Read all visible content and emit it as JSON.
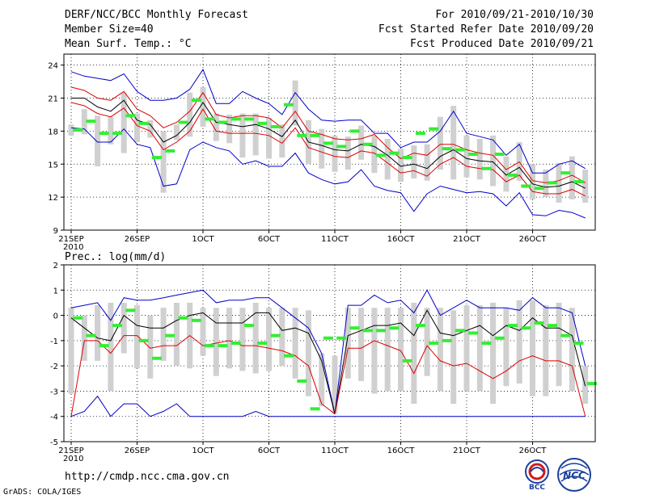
{
  "header": {
    "title": "DERF/NCC/BCC Monthly Forecast",
    "member_size": "Member Size=40",
    "variable": "Mean Surf. Temp.: °C",
    "period": "For 2010/09/21-2010/10/30",
    "started": "Fcst Started Refer Date 2010/09/20",
    "produced": "Fcst Produced Date 2010/09/21"
  },
  "footer": {
    "url": "http://cmdp.ncc.cma.gov.cn",
    "grads": "GrADS: COLA/IGES",
    "logo_bcc": "BCC",
    "logo_ncc": "NCC"
  },
  "colors": {
    "max_min": "#0000cc",
    "spread": "#dd0000",
    "mean": "#000000",
    "member_box": "#d0d0d0",
    "observation": "#33ee33"
  },
  "chart_data": [
    {
      "type": "line",
      "name": "temperature",
      "title": "Mean Surf. Temp.: °C",
      "ylim": [
        9,
        25
      ],
      "yticks": [
        9,
        12,
        15,
        18,
        21,
        24
      ],
      "grid": true,
      "x_tick_days": [
        0,
        5,
        10,
        15,
        20,
        25,
        30,
        35
      ],
      "x_tick_labels": [
        "21SEP",
        "26SEP",
        "1OCT",
        "6OCT",
        "11OCT",
        "16OCT",
        "21OCT",
        "26OCT"
      ],
      "x_year_label": "2010",
      "series": [
        {
          "name": "max",
          "values": [
            23.4,
            23.0,
            22.8,
            22.6,
            23.2,
            21.6,
            20.8,
            20.8,
            21.0,
            21.8,
            23.6,
            20.5,
            20.5,
            21.6,
            21.0,
            20.5,
            19.5,
            21.5,
            20.0,
            19.0,
            18.9,
            19.0,
            19.0,
            17.8,
            17.8,
            16.5,
            17.0,
            17.0,
            18.0,
            19.8,
            17.8,
            17.5,
            17.2,
            15.8,
            16.8,
            14.2,
            14.2,
            15.0,
            15.3,
            14.6
          ]
        },
        {
          "name": "spread_high",
          "values": [
            22.0,
            21.7,
            21.0,
            20.8,
            21.6,
            20.0,
            19.4,
            18.3,
            18.8,
            19.8,
            21.5,
            19.5,
            19.2,
            19.4,
            19.4,
            19.2,
            18.3,
            19.8,
            18.0,
            17.7,
            17.3,
            17.2,
            17.3,
            17.7,
            16.5,
            15.5,
            16.0,
            15.8,
            16.8,
            16.8,
            16.3,
            16.0,
            15.8,
            14.5,
            15.2,
            13.5,
            13.3,
            13.5,
            14.0,
            13.3
          ]
        },
        {
          "name": "mean",
          "values": [
            21.0,
            21.0,
            20.2,
            19.8,
            20.8,
            19.0,
            18.6,
            17.0,
            17.6,
            18.8,
            20.6,
            18.8,
            18.6,
            18.4,
            18.6,
            18.2,
            17.5,
            19.0,
            17.0,
            16.7,
            16.3,
            16.2,
            16.8,
            16.6,
            15.8,
            14.8,
            15.0,
            14.6,
            15.7,
            16.3,
            15.5,
            15.3,
            15.2,
            14.0,
            14.7,
            13.2,
            12.9,
            13.0,
            13.4,
            12.8
          ]
        },
        {
          "name": "spread_low",
          "values": [
            20.6,
            20.3,
            19.6,
            19.3,
            20.1,
            18.5,
            18.0,
            16.3,
            17.0,
            18.0,
            20.0,
            18.0,
            17.8,
            17.8,
            17.8,
            17.6,
            16.9,
            18.3,
            16.5,
            16.1,
            15.7,
            15.6,
            16.2,
            16.0,
            15.1,
            14.2,
            14.4,
            13.9,
            15.0,
            15.6,
            14.8,
            14.6,
            14.5,
            13.4,
            14.0,
            12.5,
            12.3,
            12.3,
            12.7,
            12.1
          ]
        },
        {
          "name": "min",
          "values": [
            18.3,
            18.2,
            17.0,
            17.0,
            18.2,
            16.8,
            16.5,
            13.0,
            13.2,
            16.3,
            17.0,
            16.5,
            16.2,
            15.0,
            15.3,
            14.8,
            14.8,
            16.0,
            14.2,
            13.6,
            13.2,
            13.4,
            14.5,
            13.0,
            12.6,
            12.4,
            10.7,
            12.3,
            13.0,
            12.7,
            12.4,
            12.5,
            12.3,
            11.2,
            12.4,
            10.4,
            10.3,
            10.8,
            10.6,
            10.1
          ]
        },
        {
          "name": "observation",
          "values": [
            18.1,
            18.9,
            17.8,
            17.8,
            19.4,
            18.7,
            15.6,
            16.2,
            18.8,
            20.8,
            19.1,
            18.8,
            19.1,
            19.1,
            18.7,
            18.4,
            20.4,
            17.6,
            17.6,
            16.9,
            16.6,
            18.0,
            16.8,
            15.8,
            16.0,
            15.6,
            17.8,
            18.2,
            16.4,
            16.3,
            15.9,
            14.6,
            15.9,
            14.0,
            13.0,
            12.8,
            13.3,
            14.2,
            13.4
          ]
        },
        {
          "name": "box_top",
          "values": [
            18.6,
            20.0,
            19.4,
            19.3,
            21.5,
            19.6,
            19.0,
            18.0,
            18.6,
            21.5,
            22.0,
            19.6,
            19.5,
            19.6,
            19.6,
            19.2,
            18.6,
            22.6,
            19.0,
            18.2,
            17.6,
            17.5,
            18.5,
            17.6,
            17.3,
            16.4,
            16.7,
            16.8,
            19.3,
            20.3,
            17.6,
            17.3,
            17.6,
            15.7,
            17.0,
            15.0,
            14.5,
            15.1,
            15.7,
            14.5
          ]
        },
        {
          "name": "box_bottom",
          "values": [
            17.6,
            17.7,
            14.8,
            16.8,
            16.0,
            17.0,
            17.4,
            12.4,
            17.2,
            17.5,
            18.4,
            17.1,
            16.9,
            15.6,
            15.8,
            15.5,
            15.6,
            18.5,
            15.0,
            14.6,
            14.3,
            14.5,
            15.4,
            14.2,
            13.6,
            13.4,
            13.7,
            13.5,
            14.5,
            13.6,
            13.8,
            13.6,
            13.0,
            12.5,
            13.5,
            11.8,
            12.0,
            11.5,
            11.8,
            11.5
          ]
        }
      ]
    },
    {
      "type": "line",
      "name": "precipitation",
      "title": "Prec.: log(mm/d)",
      "ylim": [
        -5,
        2
      ],
      "yticks": [
        -5,
        -4,
        -3,
        -2,
        -1,
        0,
        1,
        2
      ],
      "grid": true,
      "x_tick_days": [
        0,
        5,
        10,
        15,
        20,
        25,
        30,
        35
      ],
      "x_tick_labels": [
        "21SEP",
        "26SEP",
        "1OCT",
        "6OCT",
        "11OCT",
        "16OCT",
        "21OCT",
        "26OCT"
      ],
      "x_year_label": "2010",
      "series": [
        {
          "name": "max",
          "values": [
            0.3,
            0.4,
            0.5,
            -0.2,
            0.7,
            0.6,
            0.6,
            0.7,
            0.8,
            0.9,
            1.0,
            0.5,
            0.6,
            0.6,
            0.7,
            0.7,
            0.3,
            -0.1,
            -0.5,
            -1.5,
            -3.9,
            0.4,
            0.4,
            0.8,
            0.5,
            0.6,
            0.1,
            1.0,
            0.0,
            0.3,
            0.6,
            0.3,
            0.3,
            0.3,
            0.2,
            0.7,
            0.3,
            0.3,
            0.1,
            -2.0
          ]
        },
        {
          "name": "mean",
          "values": [
            -0.1,
            -0.5,
            -0.9,
            -1.0,
            0.0,
            -0.4,
            -0.5,
            -0.5,
            -0.2,
            0.0,
            0.1,
            -0.3,
            -0.3,
            -0.3,
            0.1,
            0.1,
            -0.6,
            -0.5,
            -0.7,
            -1.8,
            -3.9,
            -0.8,
            -0.6,
            -0.4,
            -0.4,
            -0.3,
            -0.8,
            0.2,
            -0.7,
            -0.8,
            -0.6,
            -0.4,
            -0.8,
            -0.4,
            -0.6,
            -0.1,
            -0.5,
            -0.5,
            -0.8,
            -2.8
          ]
        },
        {
          "name": "spread_low",
          "values": [
            -4.0,
            -1.0,
            -1.0,
            -1.5,
            -0.8,
            -0.8,
            -1.3,
            -1.2,
            -1.2,
            -0.8,
            -1.2,
            -1.1,
            -1.0,
            -1.2,
            -1.2,
            -1.3,
            -1.4,
            -1.6,
            -2.0,
            -3.5,
            -3.9,
            -1.3,
            -1.3,
            -1.0,
            -1.2,
            -1.4,
            -2.3,
            -1.2,
            -1.8,
            -2.0,
            -1.9,
            -2.2,
            -2.5,
            -2.2,
            -1.8,
            -1.6,
            -1.8,
            -1.8,
            -2.0,
            -4.0
          ]
        },
        {
          "name": "min",
          "values": [
            -4.0,
            -3.8,
            -3.2,
            -4.0,
            -3.5,
            -3.5,
            -4.0,
            -3.8,
            -3.5,
            -4.0,
            -4.0,
            -4.0,
            -4.0,
            -4.0,
            -3.8,
            -4.0,
            -4.0,
            -4.0,
            -4.0,
            -4.0,
            -4.0,
            -4.0,
            -4.0,
            -4.0,
            -4.0,
            -4.0,
            -4.0,
            -4.0,
            -4.0,
            -4.0,
            -4.0,
            -4.0,
            -4.0,
            -4.0,
            -4.0,
            -4.0,
            -4.0,
            -4.0,
            -4.0,
            -4.0
          ]
        },
        {
          "name": "observation",
          "values": [
            -0.1,
            -0.8,
            -1.2,
            -0.4,
            0.2,
            -1.0,
            -1.7,
            -0.8,
            -0.1,
            -0.2,
            -1.2,
            -1.2,
            -1.1,
            -0.4,
            -1.1,
            -0.8,
            -1.6,
            -2.6,
            -3.7,
            -0.9,
            -0.9,
            -0.5,
            -0.6,
            -0.6,
            -0.5,
            -1.8,
            -0.4,
            -1.1,
            -1.0,
            -0.6,
            -0.7,
            -1.1,
            -0.9,
            -0.4,
            -0.5,
            -0.3,
            -0.4,
            -0.8,
            -1.1,
            -2.7
          ]
        },
        {
          "name": "box_top",
          "values": [
            0.3,
            0.0,
            0.4,
            0.5,
            0.5,
            0.4,
            0.0,
            0.3,
            0.5,
            0.5,
            0.3,
            0.3,
            0.3,
            0.3,
            0.5,
            0.3,
            0.3,
            0.3,
            0.2,
            -1.5,
            -1.6,
            0.3,
            0.3,
            0.3,
            0.3,
            0.3,
            0.5,
            0.3,
            0.3,
            0.2,
            0.4,
            0.4,
            0.5,
            0.3,
            0.6,
            0.6,
            0.4,
            0.5,
            0.3,
            -2.0
          ]
        },
        {
          "name": "box_bottom",
          "values": [
            -3.1,
            -1.8,
            -1.8,
            -3.0,
            -1.5,
            -2.1,
            -2.5,
            -1.8,
            -2.0,
            -2.1,
            -1.6,
            -2.4,
            -2.1,
            -2.2,
            -2.3,
            -2.2,
            -2.0,
            -2.5,
            -3.2,
            -3.6,
            -3.9,
            -2.5,
            -2.6,
            -3.1,
            -3.0,
            -3.0,
            -3.5,
            -2.4,
            -3.0,
            -3.5,
            -3.0,
            -3.0,
            -3.5,
            -2.8,
            -2.7,
            -3.2,
            -3.2,
            -2.8,
            -3.0,
            -3.5
          ]
        }
      ]
    }
  ]
}
